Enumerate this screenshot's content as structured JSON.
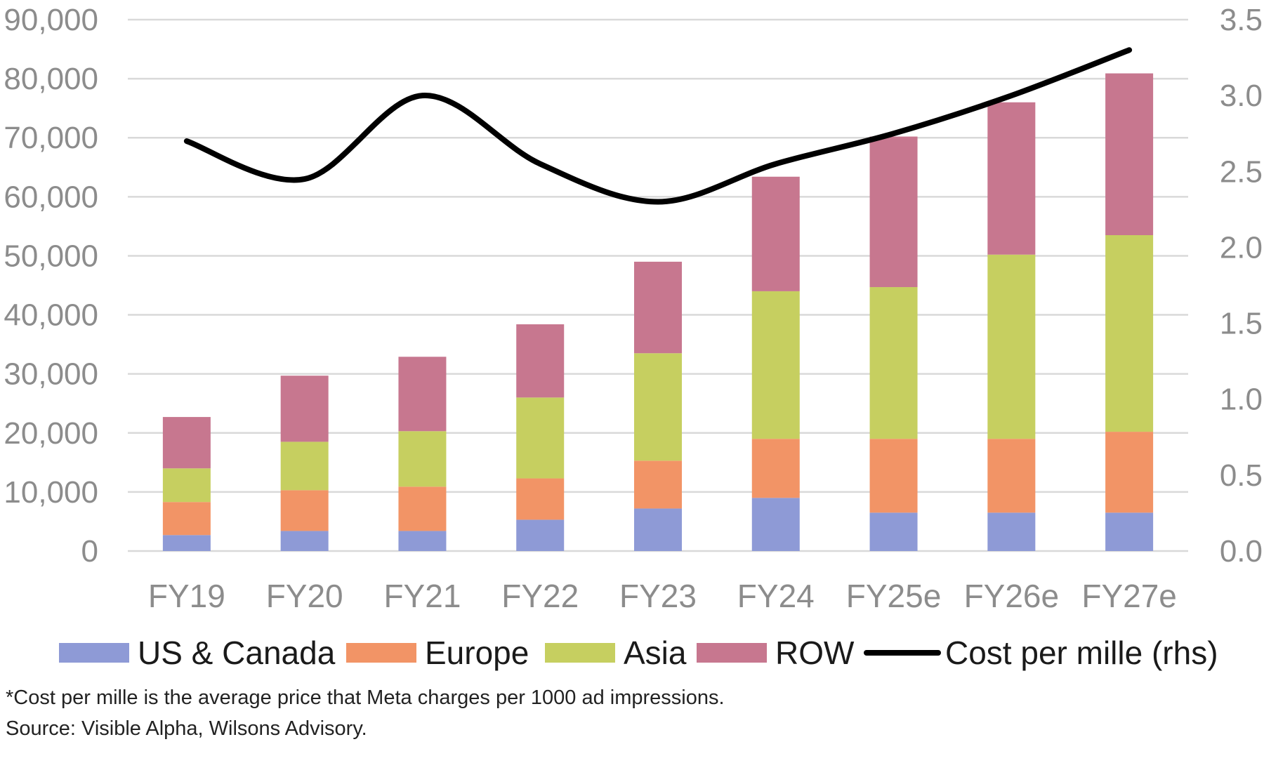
{
  "chart_data": {
    "type": "bar",
    "stacked": true,
    "categories": [
      "FY19",
      "FY20",
      "FY21",
      "FY22",
      "FY23",
      "FY24",
      "FY25e",
      "FY26e",
      "FY27e"
    ],
    "series": [
      {
        "name": "US & Canada",
        "color": "#8e9ad6",
        "values": [
          2700,
          3400,
          3400,
          5300,
          7200,
          9000,
          6500,
          6500,
          6500
        ]
      },
      {
        "name": "Europe",
        "color": "#f29466",
        "values": [
          5600,
          6900,
          7500,
          7000,
          8100,
          10000,
          12500,
          12500,
          13700
        ]
      },
      {
        "name": "Asia",
        "color": "#c6cf60",
        "values": [
          5700,
          8200,
          9400,
          13700,
          18200,
          25000,
          25700,
          31200,
          33300
        ]
      },
      {
        "name": "ROW",
        "color": "#c7778f",
        "values": [
          8700,
          11200,
          12600,
          12400,
          15500,
          19400,
          25500,
          25800,
          27400
        ]
      }
    ],
    "line_series": {
      "name": "Cost per mille (rhs)",
      "color": "#000000",
      "values": [
        2.7,
        2.45,
        3.0,
        2.55,
        2.3,
        2.55,
        2.75,
        3.0,
        3.3
      ]
    },
    "ylim": [
      0,
      90000
    ],
    "y_ticks": [
      "0",
      "10,000",
      "20,000",
      "30,000",
      "40,000",
      "50,000",
      "60,000",
      "70,000",
      "80,000",
      "90,000"
    ],
    "y2lim": [
      0,
      3.5
    ],
    "y2_ticks": [
      "0.0",
      "0.5",
      "1.0",
      "1.5",
      "2.0",
      "2.5",
      "3.0",
      "3.5"
    ],
    "grid": true,
    "legend_position": "bottom",
    "xlabel": "",
    "ylabel": ""
  },
  "footnote": "*Cost per mille is the average price that Meta charges per 1000 ad impressions.",
  "source": "Source: Visible Alpha, Wilsons Advisory."
}
